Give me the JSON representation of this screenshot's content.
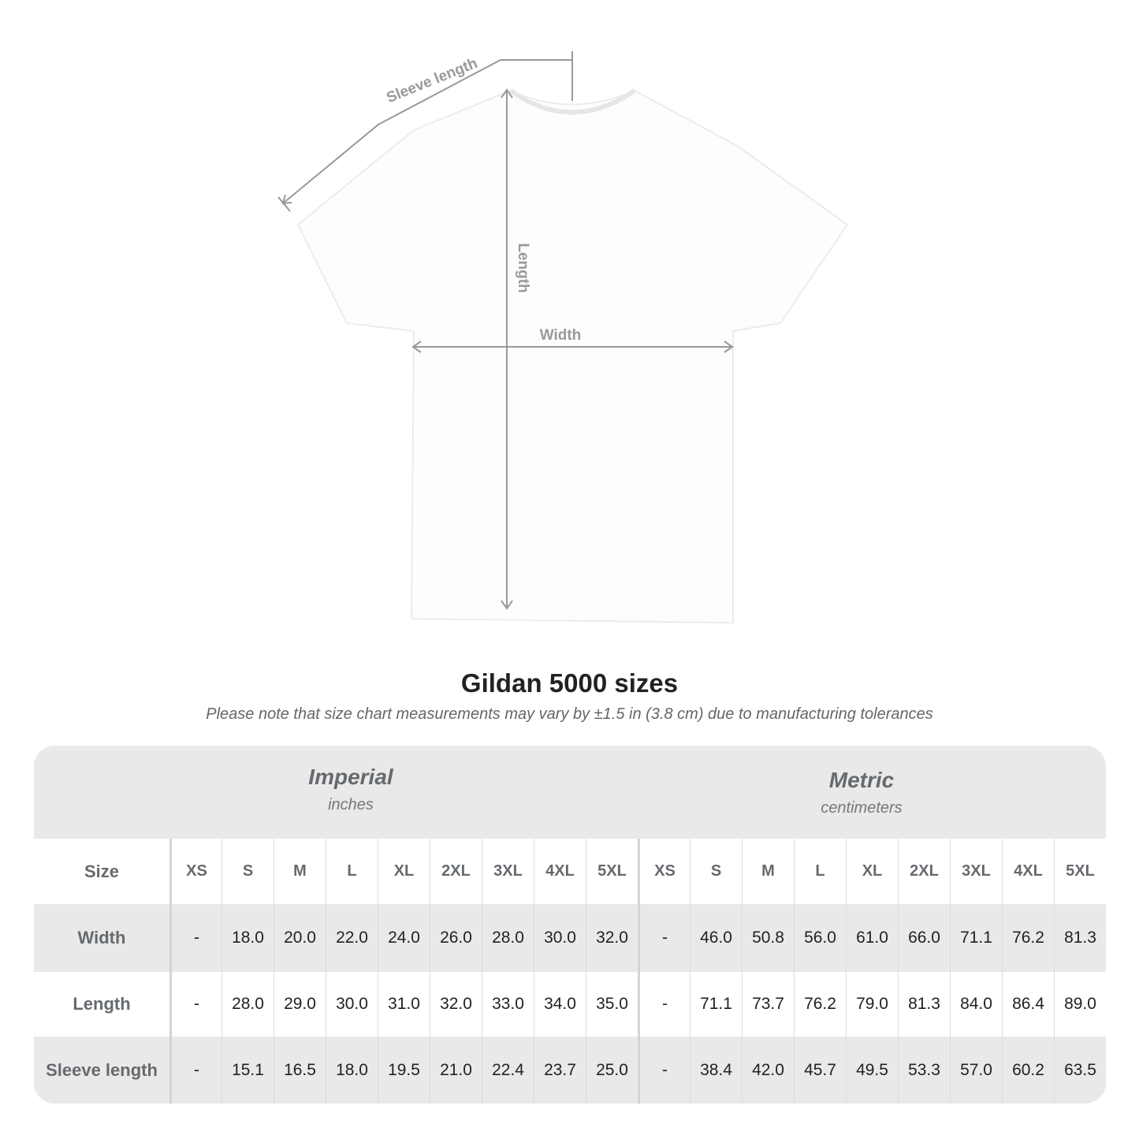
{
  "diagram": {
    "sleeve_label": "Sleeve length",
    "length_label": "Length",
    "width_label": "Width"
  },
  "title": "Gildan 5000 sizes",
  "note": "Please note that size chart measurements may vary by ±1.5 in (3.8 cm) due to manufacturing tolerances",
  "imperial": {
    "name": "Imperial",
    "unit": "inches"
  },
  "metric": {
    "name": "Metric",
    "unit": "centimeters"
  },
  "size_label": "Size",
  "sizes": [
    "XS",
    "S",
    "M",
    "L",
    "XL",
    "2XL",
    "3XL",
    "4XL",
    "5XL"
  ],
  "rows": [
    {
      "label": "Width",
      "imperial": [
        "-",
        "18.0",
        "20.0",
        "22.0",
        "24.0",
        "26.0",
        "28.0",
        "30.0",
        "32.0"
      ],
      "metric": [
        "-",
        "46.0",
        "50.8",
        "56.0",
        "61.0",
        "66.0",
        "71.1",
        "76.2",
        "81.3"
      ]
    },
    {
      "label": "Length",
      "imperial": [
        "-",
        "28.0",
        "29.0",
        "30.0",
        "31.0",
        "32.0",
        "33.0",
        "34.0",
        "35.0"
      ],
      "metric": [
        "-",
        "71.1",
        "73.7",
        "76.2",
        "79.0",
        "81.3",
        "84.0",
        "86.4",
        "89.0"
      ]
    },
    {
      "label": "Sleeve length",
      "imperial": [
        "-",
        "15.1",
        "16.5",
        "18.0",
        "19.5",
        "21.0",
        "22.4",
        "23.7",
        "25.0"
      ],
      "metric": [
        "-",
        "38.4",
        "42.0",
        "45.7",
        "49.5",
        "53.3",
        "57.0",
        "60.2",
        "63.5"
      ]
    }
  ],
  "colors": {
    "label": "#666a6e",
    "band": "#e9e9e9",
    "arrow": "#999999"
  }
}
